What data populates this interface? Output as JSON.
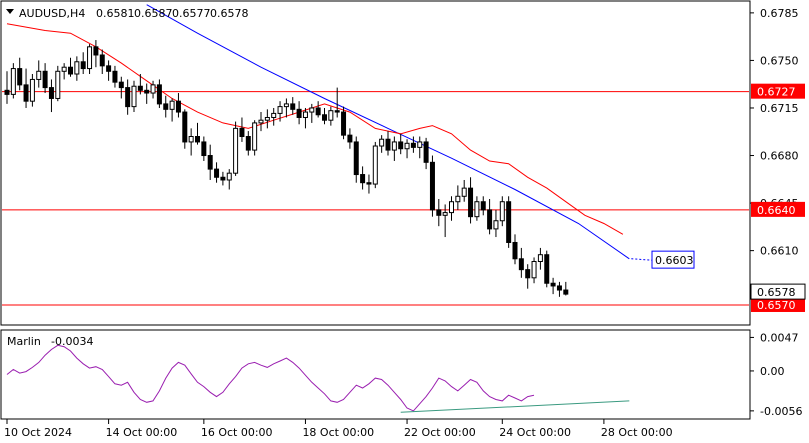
{
  "chart_data": {
    "type": "candlestick",
    "symbol": "AUDUSD,H4",
    "ohlc_header": [
      "0.6581",
      "0.6587",
      "0.6577",
      "0.6578"
    ],
    "price_axis": {
      "ylim": [
        0.6556,
        0.6793
      ],
      "ticks": [
        "0.6785",
        "0.6750",
        "0.6715",
        "0.6680",
        "0.6645",
        "0.6610"
      ]
    },
    "time_axis": {
      "labels": [
        "10 Oct 2024",
        "14 Oct 00:00",
        "16 Oct 00:00",
        "18 Oct 00:00",
        "22 Oct 00:00",
        "24 Oct 00:00",
        "28 Oct 00:00"
      ],
      "label_bar_index": [
        0,
        16,
        31,
        47,
        63,
        78,
        94
      ]
    },
    "horizontal_levels": [
      {
        "label": "0.6727",
        "value": 0.6727,
        "color": "#ff0000"
      },
      {
        "label": "0.6640",
        "value": 0.664,
        "color": "#ff0000"
      },
      {
        "label": "0.6570",
        "value": 0.657,
        "color": "#ff0000"
      }
    ],
    "current_price": {
      "label": "0.6578",
      "value": 0.6578
    },
    "ma_blue_label": {
      "label": "0.6603",
      "value": 0.6603,
      "color": "#0000ff"
    },
    "candles": [
      [
        0.6728,
        0.6742,
        0.6718,
        0.6725
      ],
      [
        0.6725,
        0.6748,
        0.6722,
        0.6744
      ],
      [
        0.6744,
        0.6752,
        0.6728,
        0.6732
      ],
      [
        0.6732,
        0.6744,
        0.6715,
        0.672
      ],
      [
        0.672,
        0.674,
        0.6716,
        0.6736
      ],
      [
        0.6736,
        0.675,
        0.673,
        0.6742
      ],
      [
        0.6742,
        0.6748,
        0.6726,
        0.673
      ],
      [
        0.673,
        0.6736,
        0.6712,
        0.6722
      ],
      [
        0.6722,
        0.6746,
        0.672,
        0.6742
      ],
      [
        0.6742,
        0.6748,
        0.6736,
        0.6745
      ],
      [
        0.6745,
        0.6752,
        0.6738,
        0.674
      ],
      [
        0.674,
        0.6753,
        0.6735,
        0.6749
      ],
      [
        0.6749,
        0.6756,
        0.674,
        0.6744
      ],
      [
        0.6744,
        0.6762,
        0.674,
        0.676
      ],
      [
        0.676,
        0.6765,
        0.6745,
        0.6754
      ],
      [
        0.6754,
        0.6758,
        0.674,
        0.6746
      ],
      [
        0.6746,
        0.675,
        0.6735,
        0.6742
      ],
      [
        0.6742,
        0.6746,
        0.673,
        0.6734
      ],
      [
        0.6734,
        0.6738,
        0.6722,
        0.673
      ],
      [
        0.673,
        0.6736,
        0.671,
        0.6716
      ],
      [
        0.6716,
        0.6735,
        0.6712,
        0.6731
      ],
      [
        0.6731,
        0.674,
        0.6725,
        0.6728
      ],
      [
        0.6728,
        0.6733,
        0.6718,
        0.6726
      ],
      [
        0.6726,
        0.6735,
        0.6722,
        0.6732
      ],
      [
        0.6732,
        0.6736,
        0.6715,
        0.6718
      ],
      [
        0.6718,
        0.6724,
        0.6708,
        0.6714
      ],
      [
        0.6714,
        0.6722,
        0.6705,
        0.672
      ],
      [
        0.672,
        0.6726,
        0.6708,
        0.6712
      ],
      [
        0.6712,
        0.6714,
        0.6685,
        0.669
      ],
      [
        0.669,
        0.67,
        0.668,
        0.6694
      ],
      [
        0.6694,
        0.6704,
        0.6688,
        0.669
      ],
      [
        0.669,
        0.6694,
        0.6676,
        0.668
      ],
      [
        0.668,
        0.6688,
        0.6662,
        0.667
      ],
      [
        0.667,
        0.6675,
        0.666,
        0.6664
      ],
      [
        0.6664,
        0.6668,
        0.6658,
        0.6662
      ],
      [
        0.6662,
        0.667,
        0.6655,
        0.6667
      ],
      [
        0.6667,
        0.6705,
        0.6665,
        0.67
      ],
      [
        0.67,
        0.6708,
        0.669,
        0.6694
      ],
      [
        0.6694,
        0.6698,
        0.668,
        0.6684
      ],
      [
        0.6684,
        0.6706,
        0.668,
        0.6704
      ],
      [
        0.6704,
        0.6712,
        0.6698,
        0.6706
      ],
      [
        0.6706,
        0.6714,
        0.67,
        0.6708
      ],
      [
        0.6708,
        0.6715,
        0.6702,
        0.6711
      ],
      [
        0.6711,
        0.672,
        0.6705,
        0.6716
      ],
      [
        0.6716,
        0.6722,
        0.6708,
        0.6718
      ],
      [
        0.6718,
        0.6723,
        0.671,
        0.6714
      ],
      [
        0.6714,
        0.672,
        0.6703,
        0.6708
      ],
      [
        0.6708,
        0.6715,
        0.67,
        0.6712
      ],
      [
        0.6712,
        0.6718,
        0.6704,
        0.6715
      ],
      [
        0.6715,
        0.672,
        0.6708,
        0.671
      ],
      [
        0.671,
        0.6715,
        0.6703,
        0.6706
      ],
      [
        0.6706,
        0.6716,
        0.6702,
        0.6713
      ],
      [
        0.6713,
        0.673,
        0.6708,
        0.6712
      ],
      [
        0.6712,
        0.6716,
        0.6692,
        0.6695
      ],
      [
        0.6695,
        0.67,
        0.6685,
        0.669
      ],
      [
        0.669,
        0.6694,
        0.666,
        0.6666
      ],
      [
        0.6666,
        0.6672,
        0.6655,
        0.666
      ],
      [
        0.666,
        0.6666,
        0.6652,
        0.6659
      ],
      [
        0.6659,
        0.669,
        0.6656,
        0.6687
      ],
      [
        0.6687,
        0.6695,
        0.6682,
        0.6692
      ],
      [
        0.6692,
        0.6698,
        0.668,
        0.6684
      ],
      [
        0.6684,
        0.6694,
        0.6676,
        0.669
      ],
      [
        0.669,
        0.6696,
        0.6681,
        0.6685
      ],
      [
        0.6685,
        0.6692,
        0.6678,
        0.6689
      ],
      [
        0.6689,
        0.6694,
        0.6682,
        0.6686
      ],
      [
        0.6686,
        0.6694,
        0.6678,
        0.669
      ],
      [
        0.669,
        0.6693,
        0.667,
        0.6675
      ],
      [
        0.6675,
        0.668,
        0.6635,
        0.664
      ],
      [
        0.664,
        0.6648,
        0.6628,
        0.6636
      ],
      [
        0.6636,
        0.6644,
        0.662,
        0.6638
      ],
      [
        0.6638,
        0.665,
        0.6632,
        0.6646
      ],
      [
        0.6646,
        0.6658,
        0.664,
        0.665
      ],
      [
        0.665,
        0.6662,
        0.6646,
        0.6656
      ],
      [
        0.6656,
        0.6664,
        0.663,
        0.6635
      ],
      [
        0.6635,
        0.665,
        0.6632,
        0.6646
      ],
      [
        0.6646,
        0.665,
        0.6636,
        0.664
      ],
      [
        0.664,
        0.6648,
        0.6622,
        0.6626
      ],
      [
        0.6626,
        0.664,
        0.662,
        0.6632
      ],
      [
        0.6632,
        0.665,
        0.6628,
        0.6646
      ],
      [
        0.6646,
        0.665,
        0.6612,
        0.6616
      ],
      [
        0.6616,
        0.6622,
        0.66,
        0.6604
      ],
      [
        0.6604,
        0.6612,
        0.659,
        0.6596
      ],
      [
        0.6596,
        0.66,
        0.6582,
        0.659
      ],
      [
        0.659,
        0.6605,
        0.6586,
        0.6602
      ],
      [
        0.6602,
        0.6612,
        0.6596,
        0.6607
      ],
      [
        0.6607,
        0.661,
        0.6583,
        0.6586
      ],
      [
        0.6586,
        0.659,
        0.6578,
        0.6584
      ],
      [
        0.6584,
        0.6587,
        0.6576,
        0.6581
      ],
      [
        0.6581,
        0.6587,
        0.6577,
        0.6578
      ]
    ],
    "ma_blue": [
      [
        22,
        0.6791
      ],
      [
        30,
        0.677
      ],
      [
        40,
        0.6745
      ],
      [
        50,
        0.6722
      ],
      [
        60,
        0.67
      ],
      [
        70,
        0.6678
      ],
      [
        80,
        0.6655
      ],
      [
        90,
        0.663
      ],
      [
        98,
        0.6604
      ]
    ],
    "ma_red": [
      [
        0,
        0.6777
      ],
      [
        6,
        0.6772
      ],
      [
        10,
        0.677
      ],
      [
        14,
        0.676
      ],
      [
        18,
        0.6748
      ],
      [
        22,
        0.6735
      ],
      [
        26,
        0.6722
      ],
      [
        30,
        0.6712
      ],
      [
        34,
        0.6704
      ],
      [
        38,
        0.67
      ],
      [
        42,
        0.6706
      ],
      [
        46,
        0.6712
      ],
      [
        50,
        0.6718
      ],
      [
        54,
        0.6712
      ],
      [
        58,
        0.67
      ],
      [
        62,
        0.6696
      ],
      [
        65,
        0.67
      ],
      [
        67,
        0.6702
      ],
      [
        70,
        0.6696
      ],
      [
        73,
        0.6684
      ],
      [
        76,
        0.6676
      ],
      [
        79,
        0.6674
      ],
      [
        82,
        0.6664
      ],
      [
        85,
        0.6656
      ],
      [
        88,
        0.6646
      ],
      [
        91,
        0.6636
      ],
      [
        94,
        0.663
      ],
      [
        97,
        0.6622
      ]
    ],
    "oscillator": {
      "name": "Marlin",
      "value_label": "-0.0034",
      "ylim": [
        -0.0066,
        0.0056
      ],
      "ticks": [
        "0.0047",
        "0.00",
        "-0.0056"
      ],
      "tick_values": [
        0.0047,
        0.0,
        -0.0056
      ],
      "series": [
        -0.0005,
        0.0002,
        -0.0003,
        -0.0001,
        0.0005,
        0.0012,
        0.0022,
        0.003,
        0.0036,
        0.0034,
        0.0028,
        0.0018,
        0.001,
        0.0004,
        0.0006,
        0.0002,
        -0.0008,
        -0.0018,
        -0.002,
        -0.0016,
        -0.003,
        -0.004,
        -0.0044,
        -0.0042,
        -0.0028,
        -0.001,
        0.0004,
        0.0012,
        0.0008,
        -0.0004,
        -0.0016,
        -0.0022,
        -0.003,
        -0.0036,
        -0.003,
        -0.0018,
        -0.0008,
        0.0004,
        0.001,
        0.0012,
        0.0008,
        0.0005,
        0.001,
        0.0014,
        0.0018,
        0.0012,
        0.0004,
        -0.0006,
        -0.0016,
        -0.0024,
        -0.0032,
        -0.0042,
        -0.0044,
        -0.004,
        -0.003,
        -0.002,
        -0.0024,
        -0.0018,
        -0.001,
        -0.0012,
        -0.002,
        -0.003,
        -0.004,
        -0.0052,
        -0.0056,
        -0.0046,
        -0.0036,
        -0.0024,
        -0.001,
        -0.0014,
        -0.0022,
        -0.0028,
        -0.002,
        -0.0012,
        -0.0016,
        -0.0028,
        -0.0036,
        -0.004,
        -0.0042,
        -0.0034,
        -0.0038,
        -0.0042,
        -0.0036,
        -0.0034
      ],
      "series_start_index": 0,
      "divergence_line": [
        [
          62,
          -0.0058
        ],
        [
          98,
          -0.0042
        ]
      ]
    }
  }
}
